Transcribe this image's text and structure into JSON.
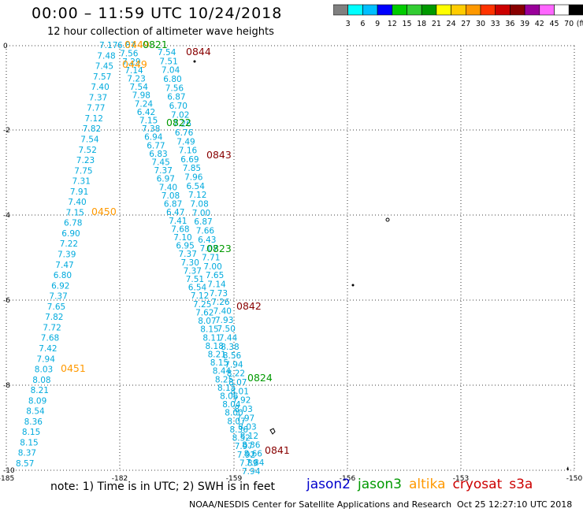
{
  "header": {
    "title": "00:00 – 11:59 UTC 10/24/2018",
    "subtitle": "12 hour collection of altimeter wave heights"
  },
  "colorbar": {
    "labels": [
      "3",
      "6",
      "9",
      "12",
      "15",
      "18",
      "21",
      "24",
      "27",
      "30",
      "33",
      "36",
      "39",
      "42",
      "45",
      "70",
      "(ft)"
    ],
    "colors": [
      "#808080",
      "#00ffff",
      "#00bfff",
      "#0000ff",
      "#00cc00",
      "#32cd32",
      "#009900",
      "#ffff00",
      "#ffcc00",
      "#ff9900",
      "#ff3300",
      "#cc0000",
      "#880000",
      "#990099",
      "#ff66ff",
      "#ffffff",
      "#000000"
    ]
  },
  "axes": {
    "x_labels": [
      "-185",
      "-182",
      "-159",
      "-156",
      "-153",
      "-150"
    ],
    "y_labels": [
      "0",
      "-2",
      "-4",
      "-6",
      "-8",
      "-10"
    ]
  },
  "pass_labels": [
    {
      "text": "0449",
      "color": "#ff9900"
    },
    {
      "text": "0821",
      "color": "#009900"
    },
    {
      "text": "0844",
      "color": "#880000"
    },
    {
      "text": "0449",
      "color": "#ff9900"
    },
    {
      "text": "0822",
      "color": "#009900"
    },
    {
      "text": "0843",
      "color": "#880000"
    },
    {
      "text": "0450",
      "color": "#ff9900"
    },
    {
      "text": "0823",
      "color": "#009900"
    },
    {
      "text": "0842",
      "color": "#880000"
    },
    {
      "text": "0451",
      "color": "#ff9900"
    },
    {
      "text": "0824",
      "color": "#009900"
    },
    {
      "text": "0841",
      "color": "#880000"
    }
  ],
  "tracks": {
    "color": "#00aadd",
    "track1": [
      "7.17",
      "7.48",
      "7.45",
      "7.57",
      "7.40",
      "7.37",
      "7.77",
      "7.12",
      "7.82",
      "7.54",
      "7.52",
      "7.23",
      "7.75",
      "7.31",
      "7.91",
      "7.40",
      "7.15",
      "6.78",
      "6.90",
      "7.22",
      "7.39",
      "7.47",
      "6.80",
      "6.92",
      "7.37",
      "7.65",
      "7.82",
      "7.72",
      "7.68",
      "7.42",
      "7.94",
      "8.03",
      "8.08",
      "8.21",
      "8.09",
      "8.54",
      "8.36",
      "8.15",
      "8.15",
      "8.37",
      "8.57"
    ],
    "track2": [
      "6.87",
      "7.56",
      "7.29",
      "7.14",
      "7.23",
      "7.54",
      "7.98",
      "7.24",
      "6.42",
      "7.15",
      "7.38",
      "6.94",
      "6.77",
      "6.83",
      "7.45",
      "7.37",
      "6.97",
      "7.40",
      "7.08",
      "6.87",
      "6.47",
      "7.41",
      "7.68",
      "7.10",
      "6.95",
      "7.37",
      "7.30",
      "7.37",
      "7.51",
      "6.54",
      "7.12",
      "7.25",
      "7.62",
      "8.07",
      "8.15",
      "8.11",
      "8.18",
      "8.21",
      "8.15",
      "8.44",
      "8.25",
      "8.15",
      "8.06",
      "8.04",
      "8.00",
      "8.07",
      "8.36",
      "8.52",
      "7.97",
      "7.92",
      "7.89",
      "7.94"
    ],
    "track3": [
      "7.54",
      "7.51",
      "7.04",
      "6.80",
      "7.56",
      "6.87",
      "6.70",
      "7.02",
      "7.26",
      "6.76",
      "7.49",
      "7.16",
      "6.69",
      "7.85",
      "7.96",
      "6.54",
      "7.12",
      "7.08",
      "7.00",
      "6.87",
      "7.66",
      "6.43",
      "7.07",
      "7.71",
      "7.00",
      "7.65",
      "7.14",
      "7.73",
      "7.26",
      "7.40",
      "7.93",
      "7.50",
      "7.44",
      "8.38",
      "8.56",
      "7.94",
      "8.22",
      "8.07",
      "8.01",
      "7.92",
      "8.03",
      "7.97",
      "8.03",
      "8.12",
      "8.36",
      "8.66",
      "7.84"
    ]
  },
  "footer": {
    "note": "note:  1) Time is in UTC; 2) SWH is in feet",
    "legend": [
      {
        "name": "jason2",
        "color": "#0000cc"
      },
      {
        "name": "jason3",
        "color": "#009900"
      },
      {
        "name": "altika",
        "color": "#ff9900"
      },
      {
        "name": "cryosat",
        "color": "#cc0000"
      },
      {
        "name": "s3a",
        "color": "#cc0000"
      }
    ],
    "credit": "NOAA/NESDIS Center for Satellite Applications and Research",
    "generated": "Oct 25 12:27:10 UTC 2018"
  }
}
